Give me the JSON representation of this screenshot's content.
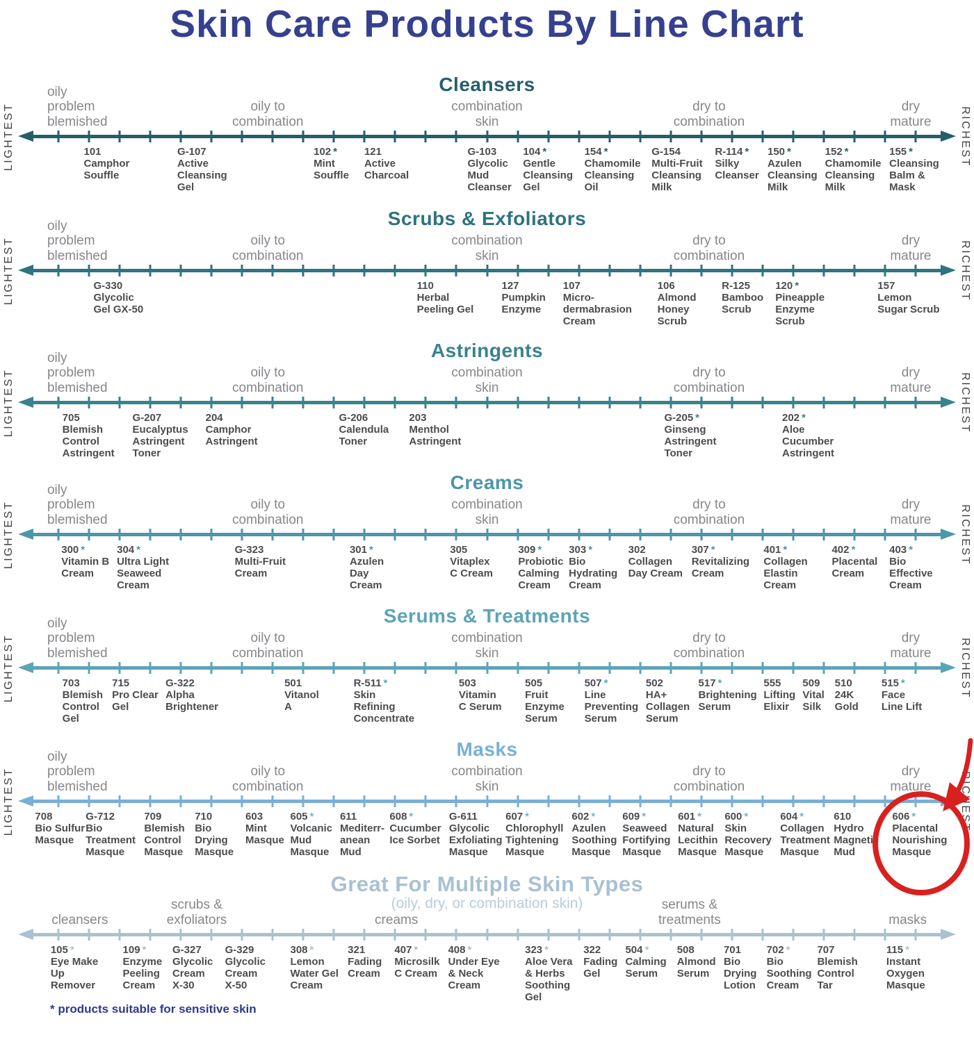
{
  "title": "Skin Care Products By Line Chart",
  "footnote": "* products suitable for sensitive skin",
  "side_labels": {
    "left": "LIGHTEST",
    "right": "RICHEST"
  },
  "zone_labels_standard": [
    {
      "text": "oily\nproblem\nblemished",
      "x": 4.85,
      "align": "left"
    },
    {
      "text": "oily to\ncombination",
      "x": 27.5,
      "align": "center"
    },
    {
      "text": "combination\nskin",
      "x": 50,
      "align": "center"
    },
    {
      "text": "dry to\ncombination",
      "x": 72.8,
      "align": "center"
    },
    {
      "text": "dry\nmature",
      "x": 93.5,
      "align": "center"
    }
  ],
  "rows": [
    {
      "heading": "Cleansers",
      "accent": "#255f6b",
      "products": [
        {
          "code": "101",
          "star": false,
          "name": "Camphor\nSouffle",
          "x": 8.6
        },
        {
          "code": "G-107",
          "star": false,
          "name": "Active\nCleansing\nGel",
          "x": 18.2
        },
        {
          "code": "102",
          "star": true,
          "name": "Mint\nSouffle",
          "x": 32.2
        },
        {
          "code": "121",
          "star": false,
          "name": "Active\nCharcoal",
          "x": 37.4
        },
        {
          "code": "G-103",
          "star": false,
          "name": "Glycolic\nMud\nCleanser",
          "x": 48.0
        },
        {
          "code": "104",
          "star": true,
          "name": "Gentle\nCleansing\nGel",
          "x": 53.7
        },
        {
          "code": "154",
          "star": true,
          "name": "Chamomile\nCleansing\nOil",
          "x": 60.0
        },
        {
          "code": "G-154",
          "star": false,
          "name": "Multi-Fruit\nCleansing\nMilk",
          "x": 66.9
        },
        {
          "code": "R-114",
          "star": true,
          "name": "Silky\nCleanser",
          "x": 73.4
        },
        {
          "code": "150",
          "star": true,
          "name": "Azulen\nCleansing\nMilk",
          "x": 78.8
        },
        {
          "code": "152",
          "star": true,
          "name": "Chamomile\nCleansing\nMilk",
          "x": 84.7
        },
        {
          "code": "155",
          "star": true,
          "name": "Cleansing\nBalm &\nMask",
          "x": 91.3
        }
      ]
    },
    {
      "heading": "Scrubs & Exfoliators",
      "accent": "#2f7380",
      "products": [
        {
          "code": "G-330",
          "star": false,
          "name": "Glycolic\nGel GX-50",
          "x": 9.6
        },
        {
          "code": "110",
          "star": false,
          "name": "Herbal\nPeeling Gel",
          "x": 42.8
        },
        {
          "code": "127",
          "star": false,
          "name": "Pumpkin\nEnzyme",
          "x": 51.5
        },
        {
          "code": "107",
          "star": false,
          "name": "Micro-\ndermabrasion\nCream",
          "x": 57.8
        },
        {
          "code": "106",
          "star": false,
          "name": "Almond\nHoney\nScrub",
          "x": 67.5
        },
        {
          "code": "R-125",
          "star": false,
          "name": "Bamboo\nScrub",
          "x": 74.1
        },
        {
          "code": "120",
          "star": true,
          "name": "Pineapple\nEnzyme\nScrub",
          "x": 79.6
        },
        {
          "code": "157",
          "star": false,
          "name": "Lemon\nSugar Scrub",
          "x": 90.1
        }
      ]
    },
    {
      "heading": "Astringents",
      "accent": "#3a8290",
      "products": [
        {
          "code": "705",
          "star": false,
          "name": "Blemish\nControl\nAstringent",
          "x": 6.4
        },
        {
          "code": "G-207",
          "star": false,
          "name": "Eucalyptus\nAstringent\nToner",
          "x": 13.6
        },
        {
          "code": "204",
          "star": false,
          "name": "Camphor\nAstringent",
          "x": 21.1
        },
        {
          "code": "G-206",
          "star": false,
          "name": "Calendula\nToner",
          "x": 34.8
        },
        {
          "code": "203",
          "star": false,
          "name": "Menthol\nAstringent",
          "x": 42.0
        },
        {
          "code": "G-205",
          "star": true,
          "name": "Ginseng\nAstringent\nToner",
          "x": 68.2
        },
        {
          "code": "202",
          "star": true,
          "name": "Aloe\nCucumber\nAstringent",
          "x": 80.3
        }
      ]
    },
    {
      "heading": "Creams",
      "accent": "#4b96aa",
      "products": [
        {
          "code": "300",
          "star": true,
          "name": "Vitamin B\nCream",
          "x": 6.3
        },
        {
          "code": "304",
          "star": true,
          "name": "Ultra Light\nSeaweed\nCream",
          "x": 12.0
        },
        {
          "code": "G-323",
          "star": false,
          "name": "Multi-Fruit\nCream",
          "x": 24.1
        },
        {
          "code": "301",
          "star": true,
          "name": "Azulen\nDay\nCream",
          "x": 35.9
        },
        {
          "code": "305",
          "star": false,
          "name": "Vitaplex\nC Cream",
          "x": 46.2
        },
        {
          "code": "309",
          "star": true,
          "name": "Probiotic\nCalming\nCream",
          "x": 53.2
        },
        {
          "code": "303",
          "star": true,
          "name": "Bio\nHydrating\nCream",
          "x": 58.4
        },
        {
          "code": "302",
          "star": false,
          "name": "Collagen\nDay Cream",
          "x": 64.5
        },
        {
          "code": "307",
          "star": true,
          "name": "Revitalizing\nCream",
          "x": 71.0
        },
        {
          "code": "401",
          "star": true,
          "name": "Collagen\nElastin\nCream",
          "x": 78.4
        },
        {
          "code": "402",
          "star": true,
          "name": "Placental\nCream",
          "x": 85.4
        },
        {
          "code": "403",
          "star": true,
          "name": "Bio\nEffective\nCream",
          "x": 91.3
        }
      ]
    },
    {
      "heading": "Serums & Treatments",
      "accent": "#5ca4b8",
      "products": [
        {
          "code": "703",
          "star": false,
          "name": "Blemish\nControl\nGel",
          "x": 6.4
        },
        {
          "code": "715",
          "star": false,
          "name": "Pro Clear\nGel",
          "x": 11.5
        },
        {
          "code": "G-322",
          "star": false,
          "name": "Alpha\nBrightener",
          "x": 17.0
        },
        {
          "code": "501",
          "star": false,
          "name": "Vitanol\nA",
          "x": 29.2
        },
        {
          "code": "R-511",
          "star": true,
          "name": "Skin\nRefining\nConcentrate",
          "x": 36.3
        },
        {
          "code": "503",
          "star": false,
          "name": "Vitamin\nC Serum",
          "x": 47.1
        },
        {
          "code": "505",
          "star": false,
          "name": "Fruit\nEnzyme\nSerum",
          "x": 53.9
        },
        {
          "code": "507",
          "star": true,
          "name": "Line\nPreventing\nSerum",
          "x": 60.0
        },
        {
          "code": "502",
          "star": false,
          "name": "HA+\nCollagen\nSerum",
          "x": 66.3
        },
        {
          "code": "517",
          "star": true,
          "name": "Brightening\nSerum",
          "x": 71.7
        },
        {
          "code": "555",
          "star": false,
          "name": "Lifting\nElixir",
          "x": 78.4
        },
        {
          "code": "509",
          "star": false,
          "name": "Vital\nSilk",
          "x": 82.4
        },
        {
          "code": "510",
          "star": false,
          "name": "24K\nGold",
          "x": 85.7
        },
        {
          "code": "515",
          "star": true,
          "name": "Face\nLine Lift",
          "x": 90.5
        }
      ]
    },
    {
      "heading": "Masks",
      "accent": "#79afd7",
      "products": [
        {
          "code": "708",
          "star": false,
          "name": "Bio Sulfur\nMasque",
          "x": 3.6
        },
        {
          "code": "G-712",
          "star": false,
          "name": "Bio\nTreatment\nMasque",
          "x": 8.8
        },
        {
          "code": "709",
          "star": false,
          "name": "Blemish\nControl\nMasque",
          "x": 14.8
        },
        {
          "code": "710",
          "star": false,
          "name": "Bio\nDrying\nMasque",
          "x": 20.0
        },
        {
          "code": "603",
          "star": false,
          "name": "Mint\nMasque",
          "x": 25.2
        },
        {
          "code": "605",
          "star": true,
          "name": "Volcanic\nMud\nMasque",
          "x": 29.8
        },
        {
          "code": "611",
          "star": false,
          "name": "Mediterr-\nanean\nMud",
          "x": 34.9
        },
        {
          "code": "608",
          "star": true,
          "name": "Cucumber\nIce Sorbet",
          "x": 40.0
        },
        {
          "code": "G-611",
          "star": false,
          "name": "Glycolic\nExfoliating\nMasque",
          "x": 46.1
        },
        {
          "code": "607",
          "star": true,
          "name": "Chlorophyll\nTightening\nMasque",
          "x": 51.9
        },
        {
          "code": "602",
          "star": true,
          "name": "Azulen\nSoothing\nMasque",
          "x": 58.7
        },
        {
          "code": "609",
          "star": true,
          "name": "Seaweed\nFortifying\nMasque",
          "x": 63.9
        },
        {
          "code": "601",
          "star": true,
          "name": "Natural\nLecithin\nMasque",
          "x": 69.6
        },
        {
          "code": "600",
          "star": true,
          "name": "Skin\nRecovery\nMasque",
          "x": 74.4
        },
        {
          "code": "604",
          "star": true,
          "name": "Collagen\nTreatment\nMasque",
          "x": 80.1
        },
        {
          "code": "610",
          "star": false,
          "name": "Hydro\nMagnetic\nMud",
          "x": 85.6
        },
        {
          "code": "606",
          "star": true,
          "name": "Placental\nNourishing\nMasque",
          "x": 91.6
        }
      ]
    },
    {
      "heading": "Great For Multiple Skin Types",
      "accent": "#a9c1d1",
      "subtitle": "(oily, dry, or combination skin)",
      "no_side_labels": true,
      "zone_labels": [
        {
          "text": "cleansers",
          "x": 8.2,
          "align": "center"
        },
        {
          "text": "scrubs &\nexfoliators",
          "x": 20.2,
          "align": "center"
        },
        {
          "text": "creams",
          "x": 40.7,
          "align": "center"
        },
        {
          "text": "serums &\ntreatments",
          "x": 70.8,
          "align": "center"
        },
        {
          "text": "masks",
          "x": 93.2,
          "align": "center"
        }
      ],
      "products": [
        {
          "code": "105",
          "star": true,
          "name": "Eye Make\nUp\nRemover",
          "x": 5.2
        },
        {
          "code": "109",
          "star": true,
          "name": "Enzyme\nPeeling\nCream",
          "x": 12.6
        },
        {
          "code": "G-327",
          "star": false,
          "name": "Glycolic\nCream\nX-30",
          "x": 17.7
        },
        {
          "code": "G-329",
          "star": false,
          "name": "Glycolic\nCream\nX-50",
          "x": 23.1
        },
        {
          "code": "308",
          "star": true,
          "name": "Lemon\nWater Gel\nCream",
          "x": 29.8
        },
        {
          "code": "321",
          "star": false,
          "name": "Fading\nCream",
          "x": 35.7
        },
        {
          "code": "407",
          "star": true,
          "name": "Microsilk\nC Cream",
          "x": 40.5
        },
        {
          "code": "408",
          "star": true,
          "name": "Under Eye\n& Neck\nCream",
          "x": 46.0
        },
        {
          "code": "323",
          "star": true,
          "name": "Aloe Vera\n& Herbs\nSoothing\nGel",
          "x": 53.9
        },
        {
          "code": "322",
          "star": false,
          "name": "Fading\nGel",
          "x": 59.9
        },
        {
          "code": "504",
          "star": true,
          "name": "Calming\nSerum",
          "x": 64.2
        },
        {
          "code": "508",
          "star": false,
          "name": "Almond\nSerum",
          "x": 69.5
        },
        {
          "code": "701",
          "star": false,
          "name": "Bio\nDrying\nLotion",
          "x": 74.3
        },
        {
          "code": "702",
          "star": true,
          "name": "Bio\nSoothing\nCream",
          "x": 78.7
        },
        {
          "code": "707",
          "star": false,
          "name": "Blemish\nControl\nTar",
          "x": 83.9
        },
        {
          "code": "115",
          "star": true,
          "name": "Instant\nOxygen\nMasque",
          "x": 91.0
        }
      ]
    }
  ],
  "annotation": {
    "color": "#d8211f",
    "circled_product_code": "606",
    "circled_product_name": "Placental Nourishing Masque"
  },
  "title_color": "#35408f"
}
